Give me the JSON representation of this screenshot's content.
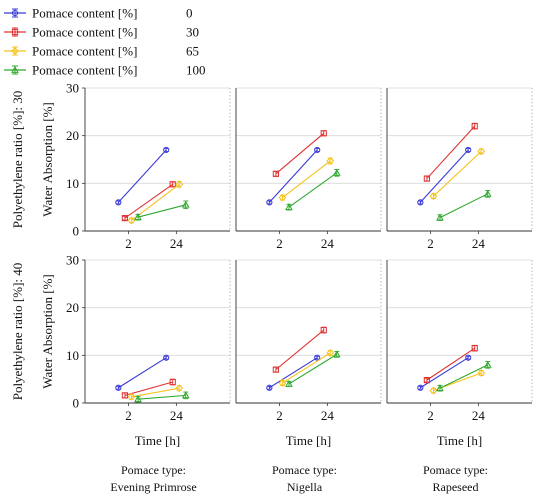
{
  "chart_data": {
    "type": "line",
    "y_axis_label": "Water Absorption [%]",
    "x_axis_label": "Time [h]",
    "x_categories": [
      "2",
      "24"
    ],
    "y_ticks": [
      "0",
      "10",
      "20",
      "30"
    ],
    "ylim": [
      0,
      30
    ],
    "grid": true,
    "legend_position": "top-left",
    "legend": [
      {
        "label": "Pomace content [%]",
        "value": "0",
        "color": "#3a3ad8",
        "marker": "circle"
      },
      {
        "label": "Pomace content [%]",
        "value": "30",
        "color": "#e03030",
        "marker": "square"
      },
      {
        "label": "Pomace content [%]",
        "value": "65",
        "color": "#f5c21b",
        "marker": "diamond"
      },
      {
        "label": "Pomace content [%]",
        "value": "100",
        "color": "#2ea82e",
        "marker": "triangle"
      }
    ],
    "row_labels": [
      "Polyethylene ratio [%]: 30",
      "Polyethylene ratio [%]: 40"
    ],
    "column_labels": [
      {
        "line1": "Pomace type:",
        "line2": "Evening Primrose"
      },
      {
        "line1": "Pomace type:",
        "line2": "Nigella"
      },
      {
        "line1": "Pomace type:",
        "line2": "Rapeseed"
      }
    ],
    "panels": [
      {
        "row": 0,
        "col": 0,
        "series": [
          {
            "values": [
              6.0,
              17.0
            ],
            "errors": [
              0.3,
              0.3
            ]
          },
          {
            "values": [
              2.7,
              9.8
            ],
            "errors": [
              0.4,
              0.5
            ]
          },
          {
            "values": [
              2.2,
              9.8
            ],
            "errors": [
              0.5,
              0.6
            ]
          },
          {
            "values": [
              2.9,
              5.5
            ],
            "errors": [
              0.6,
              0.8
            ]
          }
        ]
      },
      {
        "row": 0,
        "col": 1,
        "series": [
          {
            "values": [
              6.0,
              17.0
            ],
            "errors": [
              0.3,
              0.3
            ]
          },
          {
            "values": [
              12.0,
              20.5
            ],
            "errors": [
              0.5,
              0.5
            ]
          },
          {
            "values": [
              7.0,
              14.7
            ],
            "errors": [
              0.5,
              0.6
            ]
          },
          {
            "values": [
              5.0,
              12.2
            ],
            "errors": [
              0.6,
              0.7
            ]
          }
        ]
      },
      {
        "row": 0,
        "col": 2,
        "series": [
          {
            "values": [
              6.0,
              17.0
            ],
            "errors": [
              0.3,
              0.3
            ]
          },
          {
            "values": [
              11.0,
              22.0
            ],
            "errors": [
              0.5,
              0.6
            ]
          },
          {
            "values": [
              7.3,
              16.7
            ],
            "errors": [
              0.5,
              0.5
            ]
          },
          {
            "values": [
              2.8,
              7.8
            ],
            "errors": [
              0.6,
              0.7
            ]
          }
        ]
      },
      {
        "row": 1,
        "col": 0,
        "series": [
          {
            "values": [
              3.2,
              9.5
            ],
            "errors": [
              0.3,
              0.3
            ]
          },
          {
            "values": [
              1.6,
              4.4
            ],
            "errors": [
              0.5,
              0.6
            ]
          },
          {
            "values": [
              1.3,
              3.1
            ],
            "errors": [
              0.5,
              0.5
            ]
          },
          {
            "values": [
              0.8,
              1.6
            ],
            "errors": [
              0.6,
              0.7
            ]
          }
        ]
      },
      {
        "row": 1,
        "col": 1,
        "series": [
          {
            "values": [
              3.2,
              9.5
            ],
            "errors": [
              0.3,
              0.3
            ]
          },
          {
            "values": [
              7.0,
              15.3
            ],
            "errors": [
              0.5,
              0.6
            ]
          },
          {
            "values": [
              4.2,
              10.5
            ],
            "errors": [
              0.5,
              0.5
            ]
          },
          {
            "values": [
              4.0,
              10.2
            ],
            "errors": [
              0.5,
              0.6
            ]
          }
        ]
      },
      {
        "row": 1,
        "col": 2,
        "series": [
          {
            "values": [
              3.2,
              9.5
            ],
            "errors": [
              0.3,
              0.3
            ]
          },
          {
            "values": [
              4.8,
              11.5
            ],
            "errors": [
              0.4,
              0.6
            ]
          },
          {
            "values": [
              2.6,
              6.3
            ],
            "errors": [
              0.5,
              0.5
            ]
          },
          {
            "values": [
              3.1,
              8.0
            ],
            "errors": [
              0.6,
              0.7
            ]
          }
        ]
      }
    ]
  }
}
